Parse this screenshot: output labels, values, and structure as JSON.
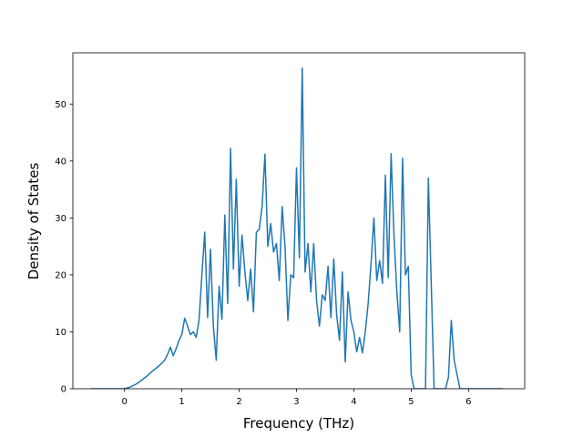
{
  "chart_data": {
    "type": "line",
    "title": "",
    "xlabel": "Frequency (THz)",
    "ylabel": "Density of States",
    "xlim": [
      -0.9,
      6.98
    ],
    "ylim": [
      0,
      59
    ],
    "xticks": [
      0,
      1,
      2,
      3,
      4,
      5,
      6
    ],
    "yticks": [
      0,
      10,
      20,
      30,
      40,
      50
    ],
    "grid": false,
    "legend": "none",
    "color": "#1f77b4",
    "series": [
      {
        "x": [
          -0.6,
          -0.3,
          0.0,
          0.1,
          0.2,
          0.3,
          0.4,
          0.5,
          0.6,
          0.7,
          0.75,
          0.8,
          0.85,
          0.9,
          0.95,
          1.0,
          1.05,
          1.1,
          1.15,
          1.2,
          1.25,
          1.3,
          1.35,
          1.4,
          1.45,
          1.5,
          1.55,
          1.6,
          1.65,
          1.7,
          1.75,
          1.8,
          1.85,
          1.9,
          1.95,
          2.0,
          2.05,
          2.1,
          2.15,
          2.2,
          2.25,
          2.3,
          2.35,
          2.4,
          2.45,
          2.5,
          2.55,
          2.6,
          2.65,
          2.7,
          2.75,
          2.8,
          2.85,
          2.9,
          2.95,
          3.0,
          3.05,
          3.1,
          3.15,
          3.2,
          3.25,
          3.3,
          3.35,
          3.4,
          3.45,
          3.5,
          3.55,
          3.6,
          3.65,
          3.7,
          3.75,
          3.8,
          3.85,
          3.9,
          3.95,
          4.0,
          4.05,
          4.1,
          4.15,
          4.2,
          4.25,
          4.3,
          4.35,
          4.4,
          4.45,
          4.5,
          4.55,
          4.6,
          4.65,
          4.7,
          4.75,
          4.8,
          4.85,
          4.9,
          4.95,
          5.0,
          5.05,
          5.1,
          5.15,
          5.2,
          5.25,
          5.3,
          5.4,
          5.55,
          5.6,
          5.65,
          5.7,
          5.75,
          5.85,
          5.9,
          5.95,
          6.0,
          6.05,
          6.6
        ],
        "y": [
          0,
          0,
          0,
          0.3,
          0.8,
          1.5,
          2.3,
          3.2,
          4.0,
          5.0,
          6.0,
          7.3,
          5.8,
          7.0,
          8.5,
          9.5,
          12.4,
          11.0,
          9.5,
          10.0,
          9.0,
          12.0,
          20.0,
          27.5,
          12.5,
          24.5,
          11.0,
          5.0,
          18.0,
          12.2,
          30.5,
          15.0,
          42.2,
          21.0,
          36.8,
          18.0,
          27.0,
          20.5,
          15.5,
          21.0,
          13.5,
          27.5,
          28.0,
          32.0,
          41.2,
          25.0,
          29.0,
          24.0,
          25.5,
          19.0,
          32.0,
          25.0,
          12.0,
          20.0,
          19.5,
          38.8,
          23.0,
          56.3,
          20.5,
          25.5,
          17.0,
          25.5,
          15.5,
          11.0,
          16.5,
          15.5,
          21.5,
          12.5,
          22.8,
          13.0,
          8.5,
          20.5,
          4.7,
          17.0,
          12.0,
          10.0,
          6.5,
          9.0,
          6.3,
          10.0,
          15.0,
          22.0,
          30.0,
          19.0,
          22.5,
          18.5,
          37.5,
          19.5,
          41.3,
          27.0,
          17.0,
          10.0,
          40.5,
          20.0,
          21.5,
          2.5,
          0,
          0,
          0,
          0,
          0,
          37.0,
          0,
          0,
          0,
          2.0,
          12.0,
          5.0,
          0,
          0,
          0,
          0,
          0,
          0
        ]
      }
    ]
  }
}
